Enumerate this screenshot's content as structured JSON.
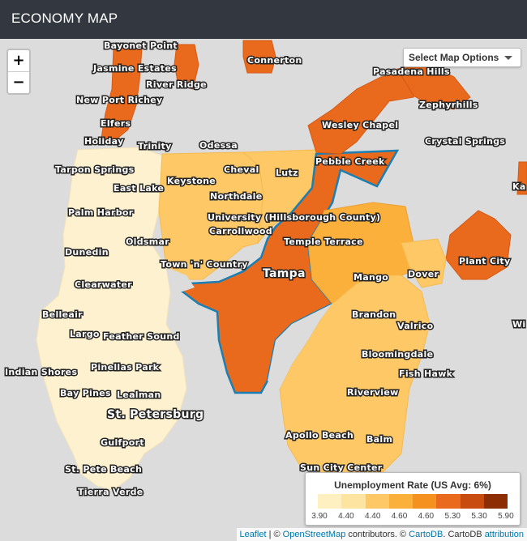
{
  "header": {
    "title": "ECONOMY MAP"
  },
  "zoom": {
    "in_label": "+",
    "out_label": "−"
  },
  "options": {
    "label": "Select Map Options"
  },
  "legend": {
    "title": "Unemployment Rate (US Avg: 6%)",
    "bins": [
      {
        "label": "3.90",
        "color": "#fff0c2"
      },
      {
        "label": "4.40",
        "color": "#fde4a0"
      },
      {
        "label": "4.40",
        "color": "#fdc865"
      },
      {
        "label": "4.60",
        "color": "#fbb03b"
      },
      {
        "label": "4.60",
        "color": "#f5911e"
      },
      {
        "label": "5.30",
        "color": "#e9691d"
      },
      {
        "label": "5.30",
        "color": "#c84c10"
      },
      {
        "label": "5.90",
        "color": "#8c2d04"
      }
    ]
  },
  "places": [
    {
      "name": "Bayonet Point"
    },
    {
      "name": "Jasmine Estates"
    },
    {
      "name": "River Ridge"
    },
    {
      "name": "New Port Richey"
    },
    {
      "name": "Elfers"
    },
    {
      "name": "Holiday"
    },
    {
      "name": "Trinity"
    },
    {
      "name": "Odessa"
    },
    {
      "name": "Connerton"
    },
    {
      "name": "Pasadena Hills"
    },
    {
      "name": "Zephyrhills"
    },
    {
      "name": "Wesley Chapel"
    },
    {
      "name": "Crystal Springs"
    },
    {
      "name": "Tarpon Springs"
    },
    {
      "name": "East Lake"
    },
    {
      "name": "Keystone"
    },
    {
      "name": "Cheval"
    },
    {
      "name": "Lutz"
    },
    {
      "name": "Pebble Creek"
    },
    {
      "name": "Northdale"
    },
    {
      "name": "Palm Harbor"
    },
    {
      "name": "University (Hillsborough County)"
    },
    {
      "name": "Carrollwood"
    },
    {
      "name": "Oldsmar"
    },
    {
      "name": "Temple Terrace"
    },
    {
      "name": "Dunedin"
    },
    {
      "name": "Town 'n' Country"
    },
    {
      "name": "Tampa"
    },
    {
      "name": "Plant City"
    },
    {
      "name": "Clearwater"
    },
    {
      "name": "Mango"
    },
    {
      "name": "Dover"
    },
    {
      "name": "Belleair"
    },
    {
      "name": "Brandon"
    },
    {
      "name": "Largo"
    },
    {
      "name": "Feather Sound"
    },
    {
      "name": "Valrico"
    },
    {
      "name": "Bloomingdale"
    },
    {
      "name": "Indian Shores"
    },
    {
      "name": "Pinellas Park"
    },
    {
      "name": "Fish Hawk"
    },
    {
      "name": "Bay Pines"
    },
    {
      "name": "Lealman"
    },
    {
      "name": "Riverview"
    },
    {
      "name": "St. Petersburg"
    },
    {
      "name": "Apollo Beach"
    },
    {
      "name": "Balm"
    },
    {
      "name": "Gulfport"
    },
    {
      "name": "St. Pete Beach"
    },
    {
      "name": "Sun City Center"
    },
    {
      "name": "Tierra Verde"
    },
    {
      "name": "Wi"
    },
    {
      "name": "Ka"
    }
  ],
  "attribution": {
    "leaflet": "Leaflet",
    "sep1": " | © ",
    "osm": "OpenStreetMap",
    "mid": " contributors. © ",
    "cartodb": "CartoDB",
    "mid2": ". CartoDB ",
    "attr": "attribution"
  }
}
